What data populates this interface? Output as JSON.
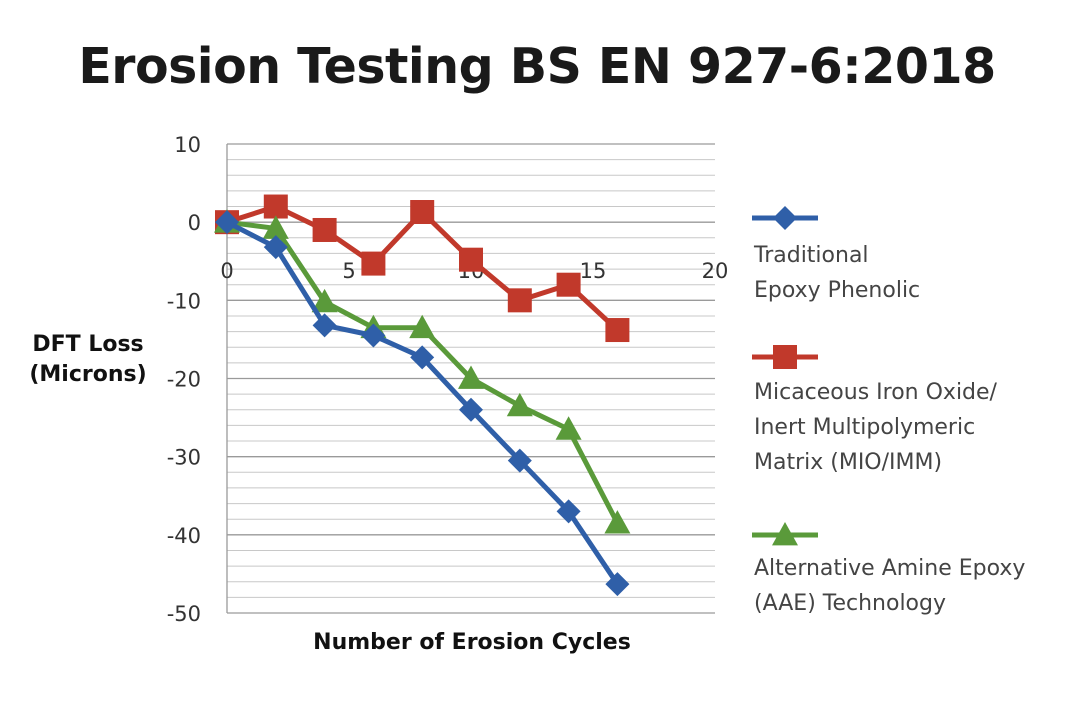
{
  "chart_data": {
    "type": "line",
    "title": "Erosion Testing BS EN 927-6:2018",
    "xlabel": "Number of Erosion Cycles",
    "ylabel_lines": [
      "DFT Loss",
      "(Microns)"
    ],
    "xlim": [
      0,
      20
    ],
    "ylim": [
      -50,
      10
    ],
    "x_ticks": [
      0,
      5,
      10,
      15,
      20
    ],
    "x_tick_labels": [
      "0",
      "5",
      "10",
      "15",
      "20"
    ],
    "y_ticks": [
      10,
      0,
      -10,
      -20,
      -30,
      -40,
      -50
    ],
    "y_tick_labels": [
      "10",
      "0",
      "-10",
      "-20",
      "-30",
      "-40",
      "-50"
    ],
    "y_minor_step": 2,
    "grid": true,
    "legend_position": "right",
    "x": [
      0,
      2,
      4,
      6,
      8,
      10,
      12,
      14,
      16
    ],
    "series": [
      {
        "name": "Traditional Epoxy Phenolic",
        "legend_lines": [
          "Traditional",
          "Epoxy Phenolic"
        ],
        "color": "#2f5fa8",
        "marker": "diamond",
        "values": [
          0,
          -3.2,
          -13.2,
          -14.5,
          -17.3,
          -24,
          -30.5,
          -37,
          -46.3
        ]
      },
      {
        "name": "Micaceous Iron Oxide/ Inert Multipolymeric Matrix (MIO/IMM)",
        "legend_lines": [
          "Micaceous Iron Oxide/",
          "Inert Multipolymeric",
          "Matrix (MIO/IMM)"
        ],
        "color": "#c1392b",
        "marker": "square",
        "values": [
          0,
          2,
          -1,
          -5.3,
          1.3,
          -4.8,
          -10,
          -8,
          -13.8
        ]
      },
      {
        "name": "Alternative Amine Epoxy (AAE) Technology",
        "legend_lines": [
          "Alternative Amine Epoxy",
          "(AAE) Technology"
        ],
        "color": "#5a9a3a",
        "marker": "triangle",
        "values": [
          0,
          -0.8,
          -10.2,
          -13.5,
          -13.5,
          -20,
          -23.5,
          -26.5,
          -38.5
        ]
      }
    ]
  }
}
